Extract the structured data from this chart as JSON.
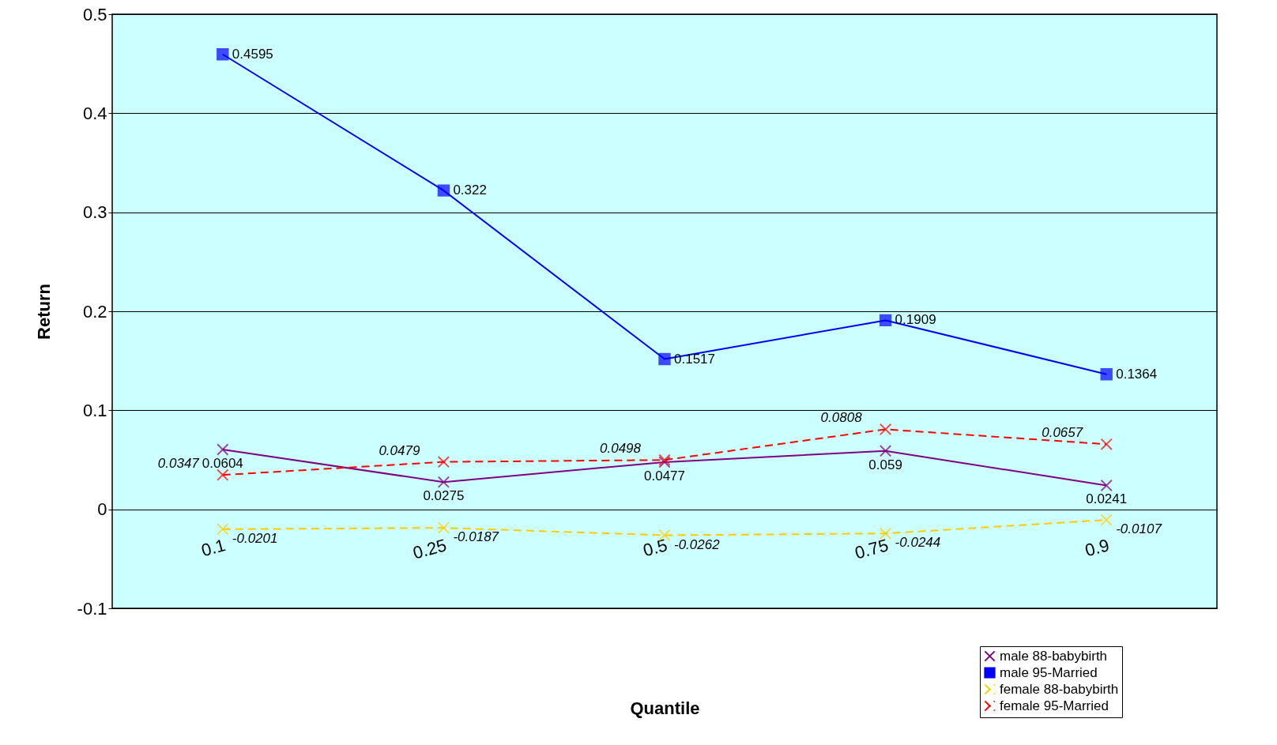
{
  "chart_data": {
    "type": "line",
    "xlabel": "Quantile",
    "ylabel": "Return",
    "categories": [
      "0.1",
      "0.25",
      "0.5",
      "0.75",
      "0.9"
    ],
    "series": [
      {
        "name": "male 88-babybirth",
        "color": "#800080",
        "marker": "cross",
        "line_style": "solid",
        "values": [
          0.0604,
          0.0275,
          0.0477,
          0.059,
          0.0241
        ]
      },
      {
        "name": "male 95-Married",
        "color": "#0000ff",
        "marker": "square",
        "line_style": "solid",
        "values": [
          0.4595,
          0.322,
          0.1517,
          0.1909,
          0.1364
        ]
      },
      {
        "name": "female 88-babybirth",
        "color": "#ffcc00",
        "marker": "cross",
        "line_style": "dashed",
        "values": [
          -0.0201,
          -0.0187,
          -0.0262,
          -0.0244,
          -0.0107
        ]
      },
      {
        "name": "female 95-Married",
        "color": "#ff0000",
        "marker": "cross",
        "line_style": "dashed",
        "values": [
          0.0347,
          0.0479,
          0.0498,
          0.0808,
          0.0657
        ]
      }
    ],
    "ylim": [
      -0.1,
      0.5
    ],
    "yticks": [
      -0.1,
      0,
      0.1,
      0.2,
      0.3,
      0.4,
      0.5
    ],
    "grid": "y",
    "legend": "bottom right",
    "data_labels": true
  }
}
